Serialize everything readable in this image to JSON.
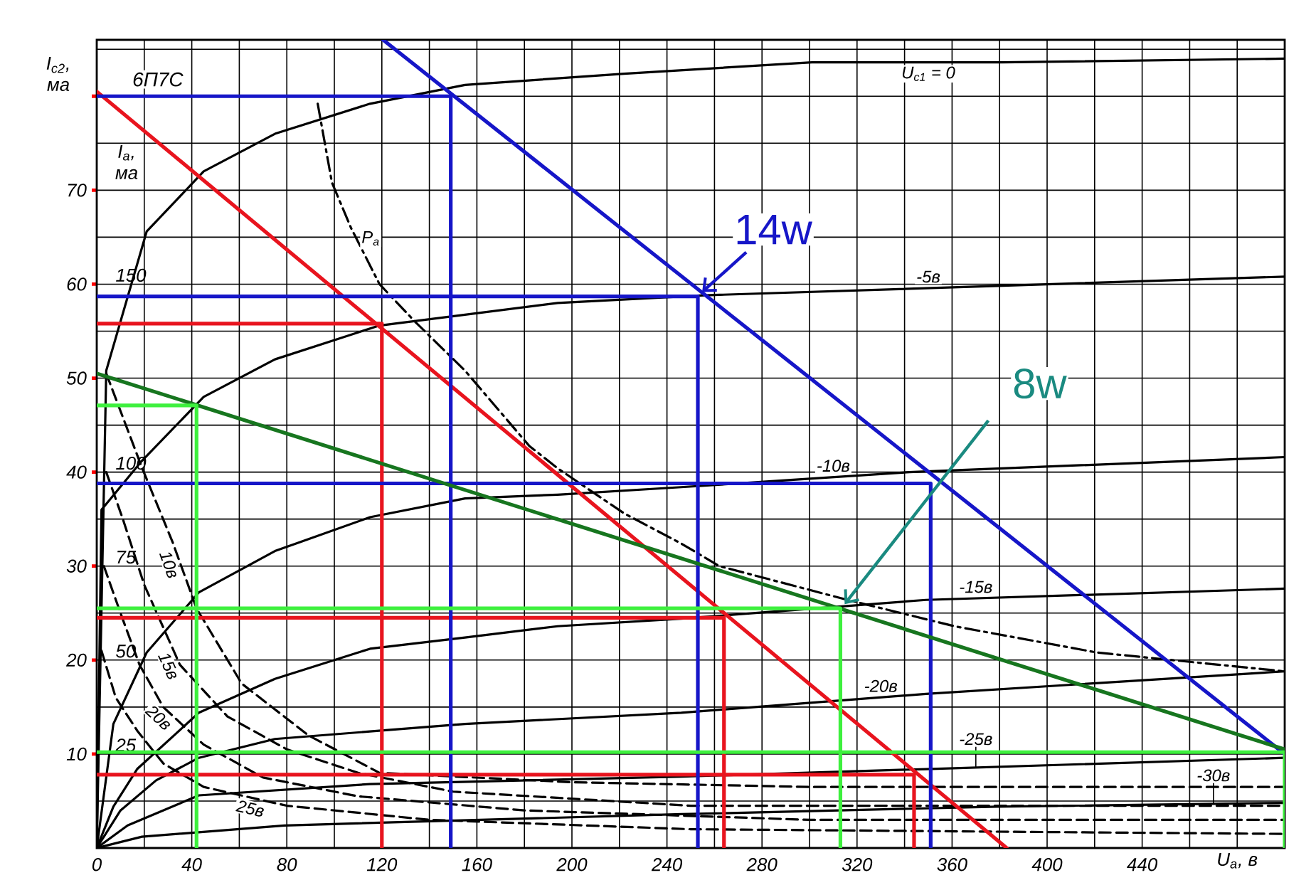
{
  "chart_data": {
    "type": "line",
    "title": "6П7С",
    "xlabel": "U$_{a}$, в",
    "ylabel": "I$_{c2}$, ма",
    "y2label": "I$_{a}$, ма",
    "xlim": [
      0,
      500
    ],
    "xticks": [
      0,
      40,
      80,
      120,
      160,
      200,
      240,
      280,
      320,
      360,
      400,
      440
    ],
    "ylim": [
      0,
      86
    ],
    "yticks": [
      10,
      20,
      30,
      40,
      50,
      60,
      70,
      {
        "value": 80,
        "label": null
      }
    ],
    "y2lim": [
      0,
      215
    ],
    "y2ticks": [
      25,
      50,
      75,
      100,
      150
    ],
    "grid": true,
    "series": [
      {
        "name": "U$_{c1}$ = 0",
        "color": "#000000",
        "axis": "y2",
        "line_style": "solid",
        "x": [
          0,
          4,
          21,
          45,
          75,
          115,
          155,
          222,
          301,
          381,
          500
        ],
        "values": [
          0,
          127,
          164,
          180,
          190,
          198,
          203,
          206,
          209,
          209,
          210
        ]
      },
      {
        "name": "-5в",
        "color": "#000000",
        "axis": "y2",
        "line_style": "solid",
        "x": [
          0,
          2,
          19,
          45,
          75,
          119,
          194,
          254,
          500
        ],
        "values": [
          0,
          90,
          103,
          120,
          130,
          139,
          145,
          147,
          152
        ]
      },
      {
        "name": "-10в",
        "color": "#000000",
        "axis": "y2",
        "line_style": "solid",
        "x": [
          0,
          7,
          21,
          43,
          75,
          115,
          155,
          194,
          246,
          342,
          500
        ],
        "values": [
          0,
          33,
          52,
          68,
          79,
          88,
          93,
          94,
          96,
          100,
          104
        ]
      },
      {
        "name": "-15в",
        "color": "#000000",
        "axis": "y2",
        "line_style": "solid",
        "x": [
          0,
          7,
          17,
          43,
          75,
          115,
          155,
          194,
          246,
          349,
          500
        ],
        "values": [
          0,
          11,
          21,
          36,
          45,
          53,
          56,
          59,
          61,
          66,
          69
        ]
      },
      {
        "name": "-20в",
        "color": "#000000",
        "axis": "y2",
        "line_style": "solid",
        "x": [
          0,
          10,
          25,
          43,
          75,
          115,
          155,
          246,
          349,
          500
        ],
        "values": [
          0,
          10,
          18,
          24,
          29,
          31,
          33,
          36,
          41,
          47
        ]
      },
      {
        "name": "-25в",
        "color": "#000000",
        "axis": "y2",
        "line_style": "solid",
        "x": [
          0,
          13,
          43,
          115,
          246,
          349,
          500
        ],
        "values": [
          0,
          6,
          14,
          17,
          19,
          21,
          24
        ]
      },
      {
        "name": "-30в",
        "color": "#000000",
        "axis": "y2",
        "line_style": "solid",
        "x": [
          0,
          19,
          79,
          246,
          379,
          500
        ],
        "values": [
          0,
          3,
          6,
          9,
          11,
          12
        ]
      },
      {
        "name": "P$_{a}$",
        "color": "#000000",
        "axis": "y2",
        "line_style": "dashdot",
        "x": [
          93,
          99,
          107,
          119,
          134,
          155,
          182,
          194,
          222,
          246,
          262,
          316,
          361,
          421,
          500
        ],
        "values": [
          198,
          177,
          165,
          150,
          140,
          127,
          107,
          101,
          89,
          81,
          75,
          66,
          59,
          52,
          47
        ]
      },
      {
        "name": "10в",
        "color": "#000000",
        "line_style": "dashed",
        "x": [
          4,
          10,
          16,
          19,
          32,
          42,
          61,
          89,
          119,
          200,
          300,
          500
        ],
        "values": [
          50.5,
          46.5,
          42.5,
          40.5,
          32.5,
          25.5,
          17.5,
          12,
          8,
          7,
          6.5,
          6.5
        ]
      },
      {
        "name": "15в",
        "color": "#000000",
        "line_style": "dashed",
        "x": [
          4,
          11,
          20,
          35,
          55,
          80,
          110,
          150,
          250,
          500
        ],
        "values": [
          40,
          35,
          28,
          19.5,
          14,
          10.5,
          8,
          6,
          4.5,
          4.5
        ]
      },
      {
        "name": "20в",
        "color": "#000000",
        "line_style": "dashed",
        "x": [
          3,
          10,
          18,
          28,
          45,
          70,
          110,
          180,
          300,
          500
        ],
        "values": [
          30,
          25,
          19.5,
          15,
          11,
          7.5,
          5.5,
          4,
          3,
          3
        ]
      },
      {
        "name": "25в",
        "color": "#000000",
        "line_style": "dashed",
        "x": [
          2,
          8,
          17,
          28,
          45,
          80,
          140,
          250,
          500
        ],
        "values": [
          21,
          16,
          12.5,
          9,
          6.5,
          4.5,
          3,
          2,
          1.5
        ]
      },
      {
        "color": "#e8141e",
        "line_style": "solid",
        "x": [
          0,
          383
        ],
        "values": [
          80.5,
          0
        ]
      },
      {
        "color": "#e8141e",
        "line_style": "solid",
        "x": [
          0,
          120,
          120
        ],
        "values": [
          55.8,
          55.8,
          0
        ]
      },
      {
        "color": "#e8141e",
        "line_style": "solid",
        "x": [
          0,
          264,
          264
        ],
        "values": [
          24.5,
          24.5,
          0
        ]
      },
      {
        "color": "#e8141e",
        "line_style": "solid",
        "x": [
          0,
          344,
          344
        ],
        "values": [
          7.8,
          7.8,
          0
        ]
      },
      {
        "color": "#1616c8",
        "line_style": "solid",
        "x": [
          120.5,
          500
        ],
        "values": [
          86,
          10
        ]
      },
      {
        "color": "#1616c8",
        "line_style": "solid",
        "x": [
          0,
          149,
          149
        ],
        "values": [
          80,
          80,
          0
        ]
      },
      {
        "color": "#1616c8",
        "line_style": "solid",
        "x": [
          0,
          253,
          253
        ],
        "values": [
          58.7,
          58.7,
          0
        ]
      },
      {
        "color": "#1616c8",
        "line_style": "solid",
        "x": [
          0,
          351,
          351
        ],
        "values": [
          38.8,
          38.8,
          0
        ]
      },
      {
        "color": "#17761f",
        "line_style": "solid",
        "x": [
          0,
          500
        ],
        "values": [
          50.5,
          10.5
        ]
      },
      {
        "color": "#3ef03e",
        "line_style": "solid",
        "x": [
          0,
          42,
          42
        ],
        "values": [
          47.1,
          47.1,
          0
        ]
      },
      {
        "color": "#3ef03e",
        "line_style": "solid",
        "x": [
          0,
          313,
          313
        ],
        "values": [
          25.5,
          25.5,
          0
        ]
      },
      {
        "color": "#3ef03e",
        "line_style": "solid",
        "x": [
          0,
          500,
          500
        ],
        "values": [
          10.2,
          10.2,
          0
        ]
      }
    ],
    "annotations": [
      {
        "text": "14w",
        "x": 253,
        "y": 58.7
      },
      {
        "text": "8w",
        "x": 313,
        "y": 25.5
      }
    ]
  }
}
